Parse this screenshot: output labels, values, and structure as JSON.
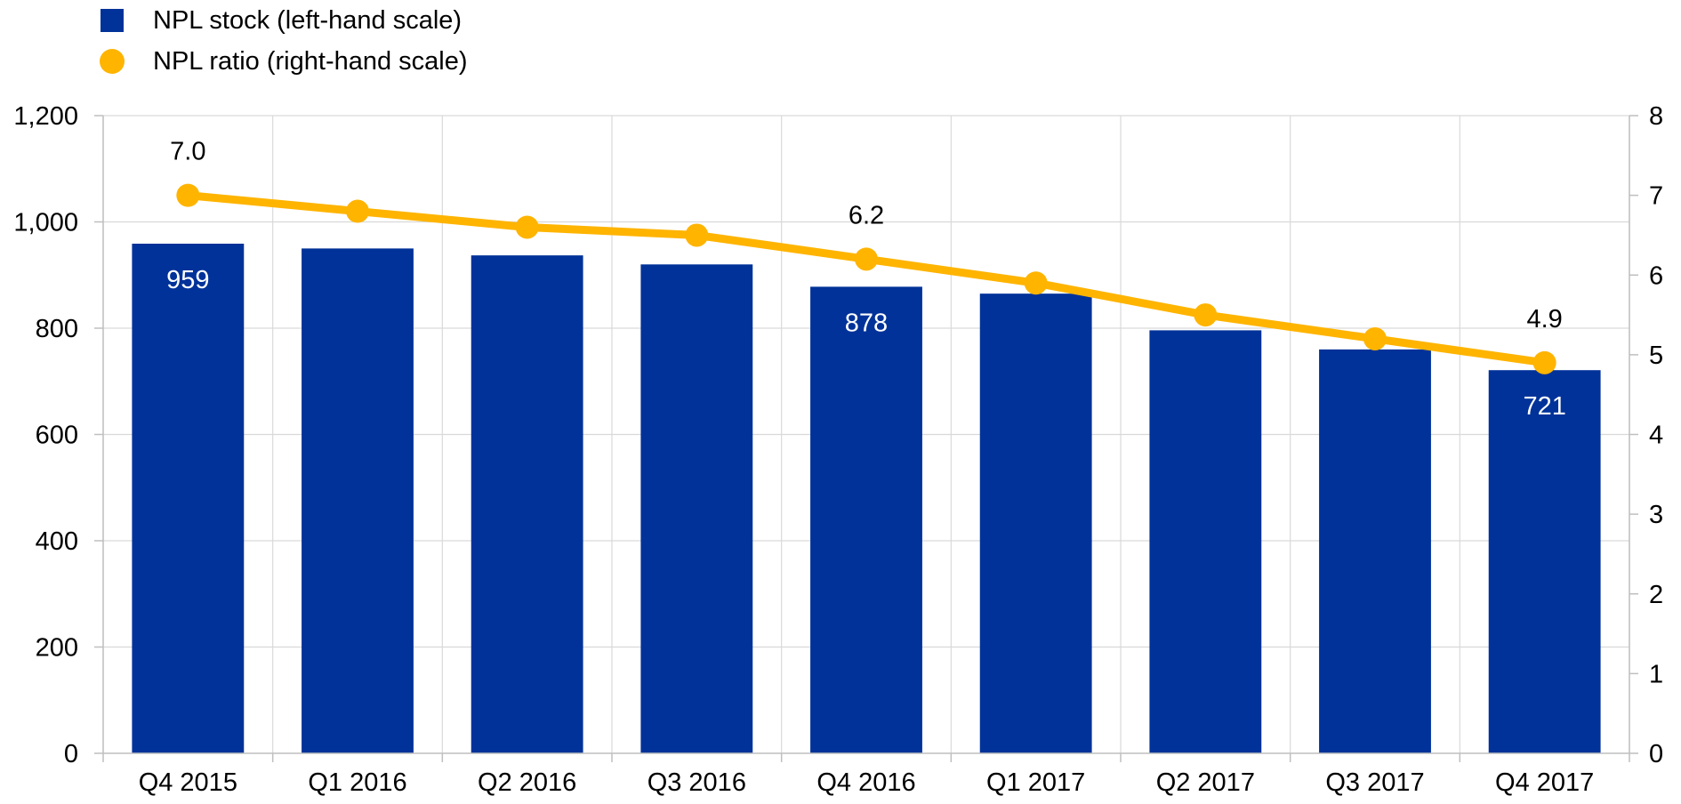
{
  "legend": {
    "stock_label": "NPL stock (left-hand scale)",
    "ratio_label": "NPL ratio (right-hand scale)"
  },
  "colors": {
    "bar": "#003299",
    "line": "#FFB400",
    "grid": "#d9d9d9",
    "axis": "#bfbfbf",
    "label_on_bar": "#ffffff",
    "label_above": "#000000"
  },
  "chart_data": {
    "type": "bar",
    "title": "",
    "categories": [
      "Q4 2015",
      "Q1 2016",
      "Q2 2016",
      "Q3 2016",
      "Q4 2016",
      "Q1 2017",
      "Q2 2017",
      "Q3 2017",
      "Q4 2017"
    ],
    "series": [
      {
        "name": "NPL stock (left-hand scale)",
        "type": "bar",
        "axis": "left",
        "values": [
          959,
          950,
          937,
          920,
          878,
          865,
          796,
          760,
          721
        ]
      },
      {
        "name": "NPL ratio (right-hand scale)",
        "type": "line",
        "axis": "right",
        "values": [
          7.0,
          6.8,
          6.6,
          6.5,
          6.2,
          5.9,
          5.5,
          5.2,
          4.9
        ]
      }
    ],
    "y_left": {
      "min": 0,
      "max": 1200,
      "ticks": [
        0,
        200,
        400,
        600,
        800,
        1000,
        1200
      ],
      "tick_labels": [
        "0",
        "200",
        "400",
        "600",
        "800",
        "1,000",
        "1,200"
      ]
    },
    "y_right": {
      "min": 0,
      "max": 8,
      "ticks": [
        0,
        1,
        2,
        3,
        4,
        5,
        6,
        7,
        8
      ],
      "tick_labels": [
        "0",
        "1",
        "2",
        "3",
        "4",
        "5",
        "6",
        "7",
        "8"
      ]
    },
    "bar_data_labels": [
      {
        "index": 0,
        "text": "959"
      },
      {
        "index": 4,
        "text": "878"
      },
      {
        "index": 8,
        "text": "721"
      }
    ],
    "line_data_labels": [
      {
        "index": 0,
        "text": "7.0"
      },
      {
        "index": 4,
        "text": "6.2"
      },
      {
        "index": 8,
        "text": "4.9"
      }
    ],
    "grid": true,
    "legend_position": "top-left"
  }
}
